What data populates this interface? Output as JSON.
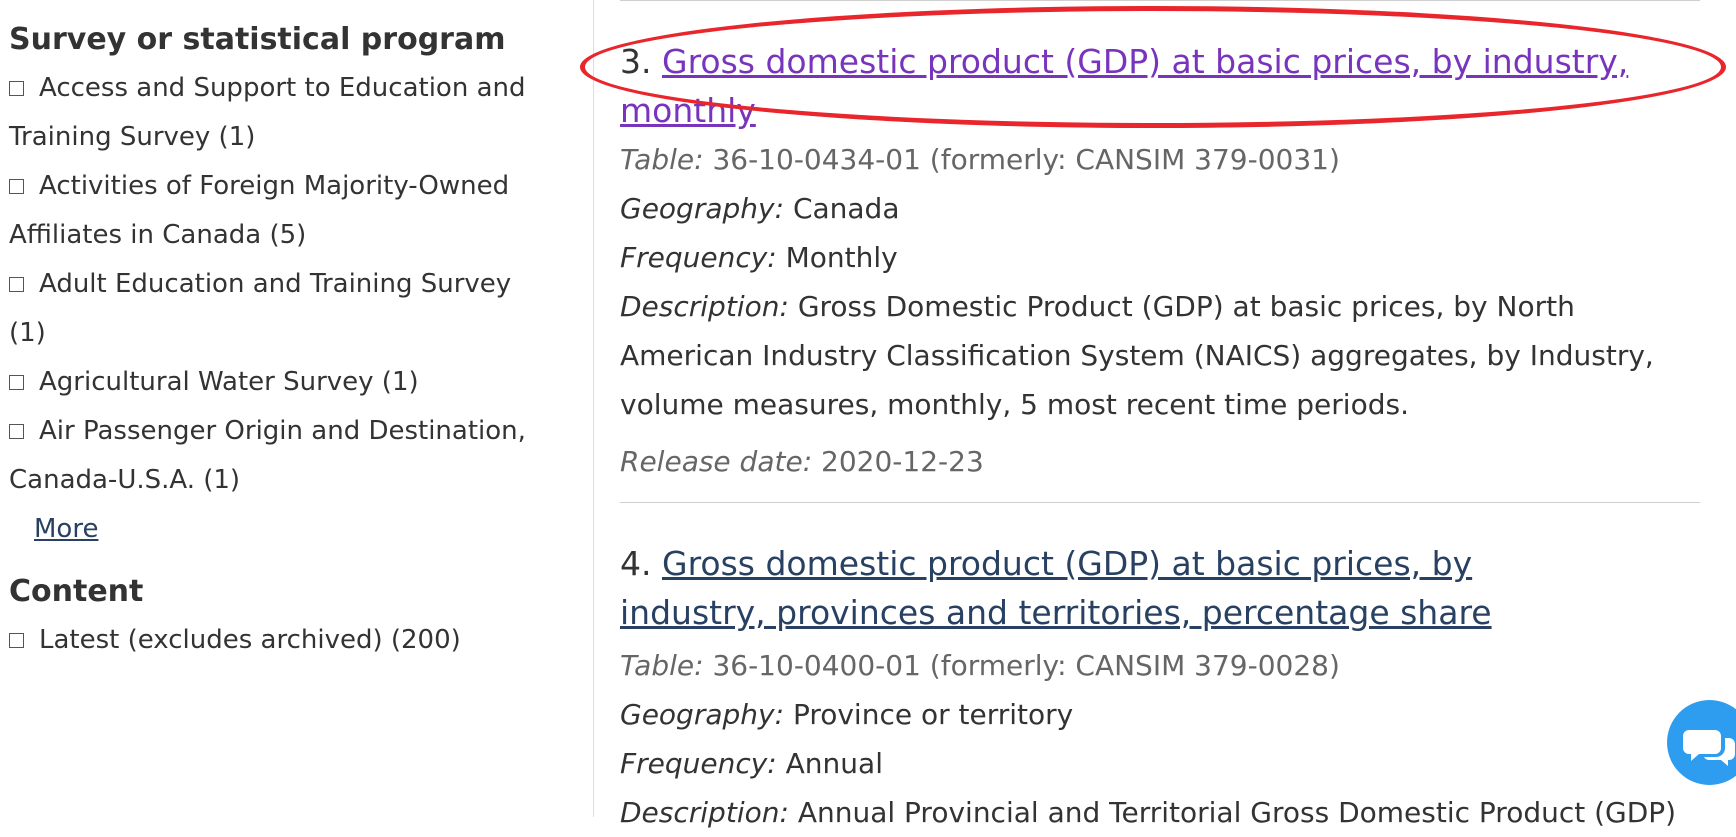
{
  "sidebar": {
    "survey_heading": "Survey or statistical program",
    "survey_items": [
      {
        "label": "Access and Support to Education and Training Survey (1)"
      },
      {
        "label": "Activities of Foreign Majority-Owned Affiliates in Canada (5)"
      },
      {
        "label": "Adult Education and Training Survey (1)"
      },
      {
        "label": "Agricultural Water Survey (1)"
      },
      {
        "label": "Air Passenger Origin and Destination, Canada-U.S.A. (1)"
      }
    ],
    "more_label": "More",
    "content_heading": "Content",
    "content_items": [
      {
        "label": "Latest (excludes archived) (200)"
      }
    ]
  },
  "results": [
    {
      "number": "3.",
      "title": "Gross domestic product (GDP) at basic prices, by industry, monthly",
      "visited": true,
      "table_label": "Table:",
      "table_value": "36-10-0434-01 (formerly: CANSIM 379-0031)",
      "geography_label": "Geography:",
      "geography_value": "Canada",
      "frequency_label": "Frequency:",
      "frequency_value": "Monthly",
      "description_label": "Description:",
      "description_value": "Gross Domestic Product (GDP) at basic prices, by North American Industry Classification System (NAICS) aggregates, by Industry, volume measures, monthly, 5 most recent time periods.",
      "release_label": "Release date:",
      "release_value": "2020-12-23"
    },
    {
      "number": "4.",
      "title": "Gross domestic product (GDP) at basic prices, by industry, provinces and territories, percentage share",
      "visited": false,
      "table_label": "Table:",
      "table_value": "36-10-0400-01 (formerly: CANSIM 379-0028)",
      "geography_label": "Geography:",
      "geography_value": "Province or territory",
      "frequency_label": "Frequency:",
      "frequency_value": "Annual",
      "description_label": "Description:",
      "description_value": "Annual Provincial and Territorial Gross Domestic Product (GDP)"
    }
  ],
  "chat_button": {
    "icon": "chat-bubbles-icon",
    "color": "#2e9cef"
  },
  "annotation": {
    "color": "#e8262c"
  },
  "colors": {
    "link": "#284162",
    "visited_link": "#7834bc",
    "text": "#333333"
  }
}
